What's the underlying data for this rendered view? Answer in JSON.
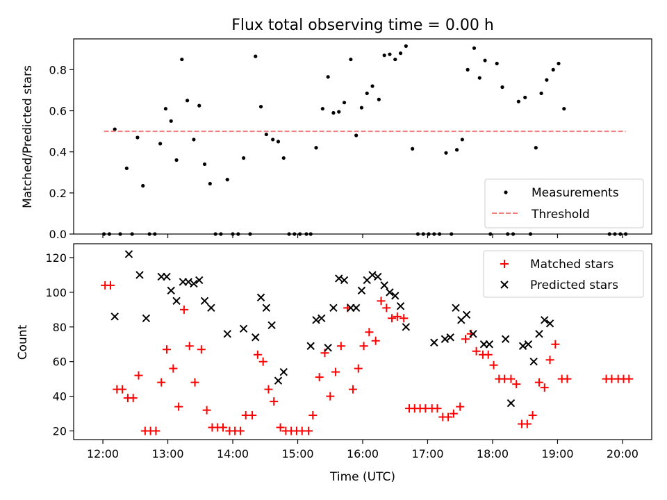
{
  "chart_data": [
    {
      "type": "scatter",
      "title": "Flux total observing time = 0.00 h",
      "xlabel": "",
      "ylabel": "Matched/Predicted stars",
      "xlim": [
        "11:33",
        "20:27"
      ],
      "ylim": [
        0,
        0.95
      ],
      "yticks": [
        0.0,
        0.2,
        0.4,
        0.6,
        0.8
      ],
      "ytick_labels": [
        "0.0",
        "0.2",
        "0.4",
        "0.6",
        "0.8"
      ],
      "legend": "lower-right",
      "colors": {
        "Measurements": "#000000",
        "Threshold": "#f08080"
      },
      "series": [
        {
          "name": "Measurements",
          "marker": "dot",
          "points": [
            [
              "12:01",
              0
            ],
            [
              "12:06",
              0
            ],
            [
              "12:11",
              0.51
            ],
            [
              "12:16",
              0
            ],
            [
              "12:22",
              0.32
            ],
            [
              "12:27",
              0
            ],
            [
              "12:32",
              0.47
            ],
            [
              "12:37",
              0.235
            ],
            [
              "12:43",
              0
            ],
            [
              "12:48",
              0
            ],
            [
              "12:53",
              0.44
            ],
            [
              "12:58",
              0.61
            ],
            [
              "13:03",
              0.55
            ],
            [
              "13:08",
              0.36
            ],
            [
              "13:13",
              0.85
            ],
            [
              "13:18",
              0.65
            ],
            [
              "13:24",
              0.46
            ],
            [
              "13:29",
              0.625
            ],
            [
              "13:34",
              0.34
            ],
            [
              "13:39",
              0.245
            ],
            [
              "13:44",
              0
            ],
            [
              "13:49",
              0
            ],
            [
              "13:55",
              0.265
            ],
            [
              "14:00",
              0
            ],
            [
              "14:05",
              0
            ],
            [
              "14:10",
              0.37
            ],
            [
              "14:16",
              0
            ],
            [
              "14:21",
              0.865
            ],
            [
              "14:26",
              0.62
            ],
            [
              "14:31",
              0.485
            ],
            [
              "14:37",
              0.46
            ],
            [
              "14:42",
              0.45
            ],
            [
              "14:47",
              0.37
            ],
            [
              "14:52",
              0
            ],
            [
              "14:57",
              0
            ],
            [
              "15:02",
              0
            ],
            [
              "15:08",
              0
            ],
            [
              "15:12",
              0
            ],
            [
              "15:17",
              0.42
            ],
            [
              "15:23",
              0.61
            ],
            [
              "15:28",
              0.765
            ],
            [
              "15:33",
              0.59
            ],
            [
              "15:38",
              0.595
            ],
            [
              "15:43",
              0.64
            ],
            [
              "15:49",
              0.85
            ],
            [
              "15:54",
              0.48
            ],
            [
              "15:59",
              0.615
            ],
            [
              "16:04",
              0.685
            ],
            [
              "16:09",
              0.72
            ],
            [
              "16:15",
              0.655
            ],
            [
              "16:20",
              0.87
            ],
            [
              "16:25",
              0.875
            ],
            [
              "16:30",
              0.85
            ],
            [
              "16:35",
              0.88
            ],
            [
              "16:40",
              0.915
            ],
            [
              "16:46",
              0.415
            ],
            [
              "16:51",
              0
            ],
            [
              "16:56",
              0
            ],
            [
              "17:01",
              0
            ],
            [
              "17:06",
              0
            ],
            [
              "17:11",
              0
            ],
            [
              "17:17",
              0.395
            ],
            [
              "17:22",
              0
            ],
            [
              "17:27",
              0.41
            ],
            [
              "17:32",
              0.46
            ],
            [
              "17:37",
              0.8
            ],
            [
              "17:43",
              0.905
            ],
            [
              "17:48",
              0.76
            ],
            [
              "17:53",
              0.845
            ],
            [
              "17:58",
              0
            ],
            [
              "18:04",
              0.83
            ],
            [
              "18:09",
              0.715
            ],
            [
              "18:14",
              0
            ],
            [
              "18:19",
              0
            ],
            [
              "18:24",
              0.645
            ],
            [
              "18:30",
              0.665
            ],
            [
              "18:35",
              0
            ],
            [
              "18:40",
              0.42
            ],
            [
              "18:45",
              0.685
            ],
            [
              "18:50",
              0.75
            ],
            [
              "18:56",
              0.8
            ],
            [
              "19:01",
              0.83
            ],
            [
              "19:06",
              0.61
            ],
            [
              "19:48",
              0
            ],
            [
              "19:53",
              0
            ],
            [
              "19:58",
              0
            ],
            [
              "20:03",
              0
            ]
          ]
        },
        {
          "name": "Threshold",
          "style": "dashed-line",
          "points": [
            [
              "12:01",
              0.5
            ],
            [
              "20:03",
              0.5
            ]
          ]
        }
      ]
    },
    {
      "type": "scatter",
      "title": "",
      "xlabel": "Time (UTC)",
      "ylabel": "Count",
      "xlim": [
        "11:33",
        "20:27"
      ],
      "ylim": [
        15,
        128
      ],
      "yticks": [
        20,
        40,
        60,
        80,
        100,
        120
      ],
      "ytick_labels": [
        "20",
        "40",
        "60",
        "80",
        "100",
        "120"
      ],
      "xticks": [
        "12:00",
        "13:00",
        "14:00",
        "15:00",
        "16:00",
        "17:00",
        "18:00",
        "19:00",
        "20:00"
      ],
      "xtick_labels": [
        "12:00",
        "13:00",
        "14:00",
        "15:00",
        "16:00",
        "17:00",
        "18:00",
        "19:00",
        "20:00"
      ],
      "legend": "upper-right",
      "colors": {
        "Matched stars": "#ff0000",
        "Predicted stars": "#000000"
      },
      "series": [
        {
          "name": "Matched stars",
          "marker": "plus",
          "points": [
            [
              "12:02",
              104
            ],
            [
              "12:07",
              104
            ],
            [
              "12:13",
              44
            ],
            [
              "12:18",
              44
            ],
            [
              "12:23",
              39
            ],
            [
              "12:28",
              39
            ],
            [
              "12:33",
              52
            ],
            [
              "12:39",
              20
            ],
            [
              "12:44",
              20
            ],
            [
              "12:49",
              20
            ],
            [
              "12:54",
              48
            ],
            [
              "12:59",
              67
            ],
            [
              "13:05",
              56
            ],
            [
              "13:10",
              34
            ],
            [
              "13:15",
              90
            ],
            [
              "13:20",
              69
            ],
            [
              "13:25",
              48
            ],
            [
              "13:31",
              67
            ],
            [
              "13:36",
              32
            ],
            [
              "13:41",
              22
            ],
            [
              "13:46",
              22
            ],
            [
              "13:51",
              22
            ],
            [
              "13:57",
              20
            ],
            [
              "14:02",
              20
            ],
            [
              "14:07",
              20
            ],
            [
              "14:12",
              29
            ],
            [
              "14:18",
              29
            ],
            [
              "14:23",
              64
            ],
            [
              "14:28",
              60
            ],
            [
              "14:33",
              44
            ],
            [
              "14:38",
              37
            ],
            [
              "14:44",
              22
            ],
            [
              "14:49",
              20
            ],
            [
              "14:54",
              20
            ],
            [
              "14:59",
              20
            ],
            [
              "15:04",
              20
            ],
            [
              "15:10",
              20
            ],
            [
              "15:14",
              29
            ],
            [
              "15:20",
              51
            ],
            [
              "15:25",
              65
            ],
            [
              "15:30",
              40
            ],
            [
              "15:35",
              54
            ],
            [
              "15:40",
              69
            ],
            [
              "15:46",
              91
            ],
            [
              "15:51",
              44
            ],
            [
              "15:56",
              56
            ],
            [
              "16:01",
              69
            ],
            [
              "16:06",
              77
            ],
            [
              "16:12",
              72
            ],
            [
              "16:17",
              95
            ],
            [
              "16:22",
              91
            ],
            [
              "16:27",
              85
            ],
            [
              "16:32",
              86
            ],
            [
              "16:38",
              85
            ],
            [
              "16:43",
              33
            ],
            [
              "16:48",
              33
            ],
            [
              "16:53",
              33
            ],
            [
              "16:58",
              33
            ],
            [
              "17:04",
              33
            ],
            [
              "17:09",
              33
            ],
            [
              "17:14",
              28
            ],
            [
              "17:19",
              28
            ],
            [
              "17:24",
              30
            ],
            [
              "17:30",
              34
            ],
            [
              "17:35",
              73
            ],
            [
              "17:40",
              76
            ],
            [
              "17:45",
              66
            ],
            [
              "17:51",
              64
            ],
            [
              "17:56",
              64
            ],
            [
              "18:01",
              58
            ],
            [
              "18:06",
              50
            ],
            [
              "18:11",
              50
            ],
            [
              "18:17",
              50
            ],
            [
              "18:22",
              47
            ],
            [
              "18:27",
              24
            ],
            [
              "18:32",
              24
            ],
            [
              "18:37",
              29
            ],
            [
              "18:43",
              48
            ],
            [
              "18:48",
              45
            ],
            [
              "18:53",
              61
            ],
            [
              "18:58",
              70
            ],
            [
              "19:04",
              50
            ],
            [
              "19:09",
              50
            ],
            [
              "19:45",
              50
            ],
            [
              "19:50",
              50
            ],
            [
              "19:56",
              50
            ],
            [
              "20:01",
              50
            ],
            [
              "20:06",
              50
            ]
          ]
        },
        {
          "name": "Predicted stars",
          "marker": "x",
          "points": [
            [
              "12:11",
              86
            ],
            [
              "12:24",
              122
            ],
            [
              "12:34",
              110
            ],
            [
              "12:40",
              85
            ],
            [
              "12:54",
              109
            ],
            [
              "12:59",
              109
            ],
            [
              "13:03",
              101
            ],
            [
              "13:08",
              95
            ],
            [
              "13:14",
              106
            ],
            [
              "13:19",
              106
            ],
            [
              "13:24",
              105
            ],
            [
              "13:29",
              107
            ],
            [
              "13:34",
              95
            ],
            [
              "13:40",
              91
            ],
            [
              "13:55",
              76
            ],
            [
              "14:10",
              79
            ],
            [
              "14:21",
              74
            ],
            [
              "14:26",
              97
            ],
            [
              "14:31",
              91
            ],
            [
              "14:36",
              81
            ],
            [
              "14:42",
              49
            ],
            [
              "14:47",
              54
            ],
            [
              "15:12",
              69
            ],
            [
              "15:17",
              84
            ],
            [
              "15:22",
              85
            ],
            [
              "15:28",
              68
            ],
            [
              "15:33",
              91
            ],
            [
              "15:38",
              108
            ],
            [
              "15:43",
              107
            ],
            [
              "15:49",
              91
            ],
            [
              "15:54",
              91
            ],
            [
              "15:59",
              101
            ],
            [
              "16:04",
              107
            ],
            [
              "16:09",
              110
            ],
            [
              "16:14",
              109
            ],
            [
              "16:20",
              104
            ],
            [
              "16:25",
              100
            ],
            [
              "16:30",
              98
            ],
            [
              "16:35",
              92
            ],
            [
              "16:40",
              80
            ],
            [
              "17:06",
              71
            ],
            [
              "17:16",
              73
            ],
            [
              "17:21",
              74
            ],
            [
              "17:26",
              91
            ],
            [
              "17:31",
              84
            ],
            [
              "17:36",
              87
            ],
            [
              "17:42",
              76
            ],
            [
              "17:52",
              70
            ],
            [
              "17:57",
              70
            ],
            [
              "18:12",
              73
            ],
            [
              "18:17",
              36
            ],
            [
              "18:28",
              69
            ],
            [
              "18:33",
              70
            ],
            [
              "18:38",
              60
            ],
            [
              "18:43",
              76
            ],
            [
              "18:48",
              84
            ],
            [
              "18:53",
              82
            ]
          ]
        }
      ]
    }
  ]
}
